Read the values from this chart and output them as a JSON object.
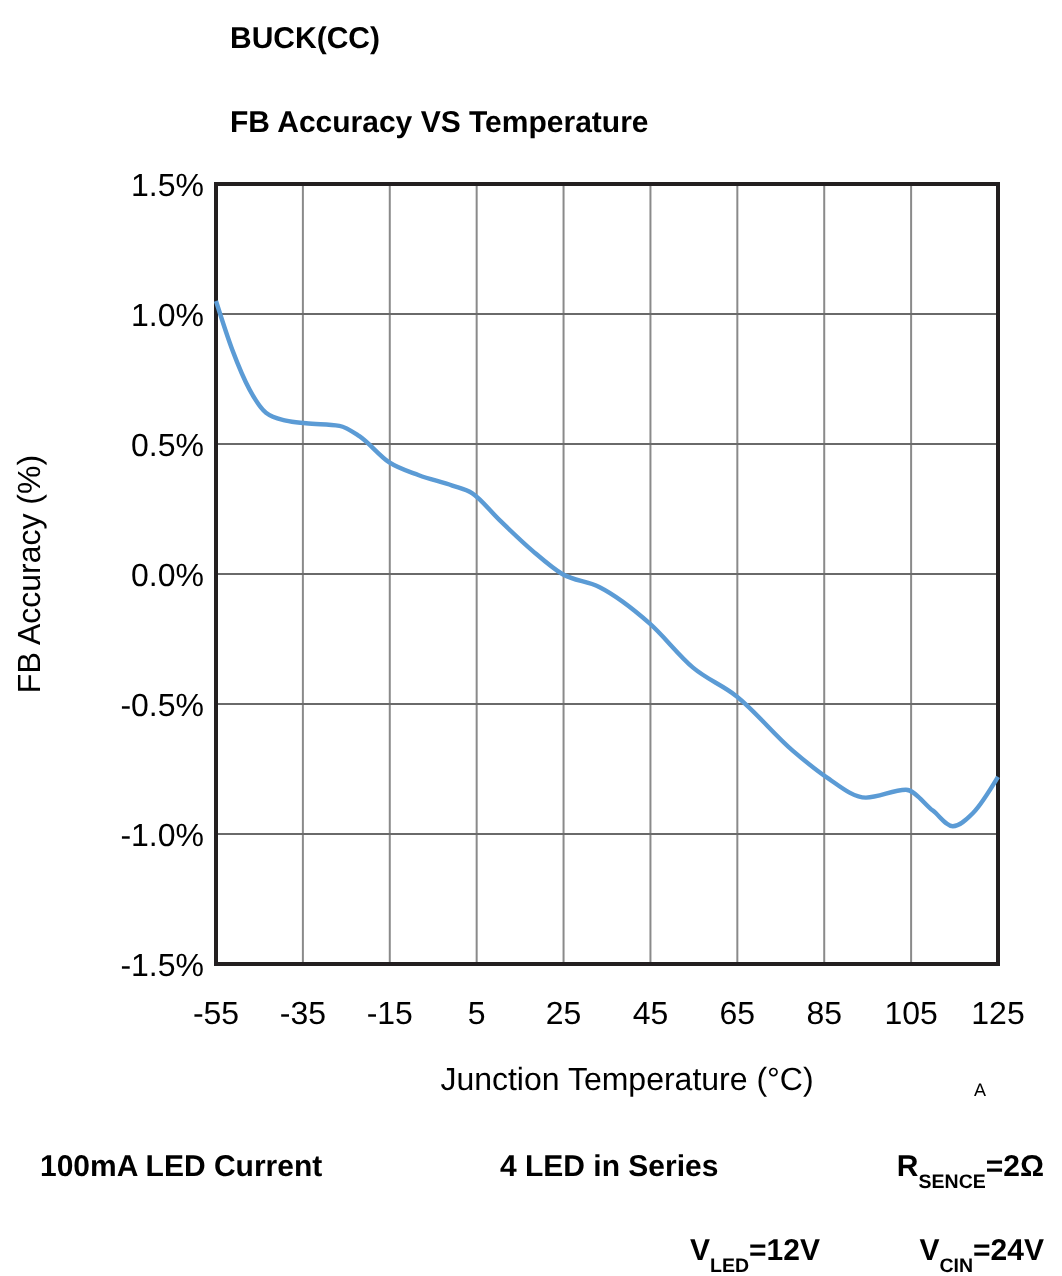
{
  "chart_data": {
    "type": "line",
    "title": "BUCK(CC)",
    "subtitle": "FB Accuracy VS Temperature",
    "xlabel": "Junction Temperature (°C)",
    "ylabel": "FB Accuracy (%)",
    "xlim": [
      -55,
      125
    ],
    "xticks": [
      -55,
      -35,
      -15,
      5,
      25,
      45,
      65,
      85,
      105,
      125
    ],
    "ylim": [
      -1.5,
      1.5
    ],
    "yticks": [
      {
        "value": -1.5,
        "label": "-1.5%"
      },
      {
        "value": -1,
        "label": "-1.0%"
      },
      {
        "value": -0.5,
        "label": "-0.5%"
      },
      {
        "value": 0,
        "label": "0.0%"
      },
      {
        "value": 0.5,
        "label": "0.5%"
      },
      {
        "value": 1,
        "label": "1.0%"
      },
      {
        "value": 1.5,
        "label": "1.5%"
      }
    ],
    "grid": true,
    "series": [
      {
        "color": "#5b9bd5",
        "x": [
          -55,
          -51.2,
          -47.3,
          -43.5,
          -38.9,
          -34.3,
          -26.6,
          -22,
          -15.2,
          -8.3,
          -0.6,
          4,
          10.1,
          17.8,
          24.7,
          33.2,
          44.8,
          54.8,
          64.8,
          77.8,
          85.4,
          94.6,
          103.8,
          110,
          114.6,
          119.2,
          125
        ],
        "values": [
          1.05,
          0.86,
          0.71,
          0.62,
          0.59,
          0.58,
          0.57,
          0.53,
          0.43,
          0.38,
          0.34,
          0.31,
          0.21,
          0.09,
          0.0,
          -0.05,
          -0.19,
          -0.36,
          -0.47,
          -0.68,
          -0.78,
          -0.86,
          -0.83,
          -0.91,
          -0.97,
          -0.92,
          -0.78
        ]
      }
    ],
    "annotations": [
      "A",
      "100mA LED Current",
      "4 LED in Series",
      "R$_{SENCE}$=2Ω",
      "V$_{LED}$=12V",
      "V$_{CIN}$=24V"
    ]
  }
}
